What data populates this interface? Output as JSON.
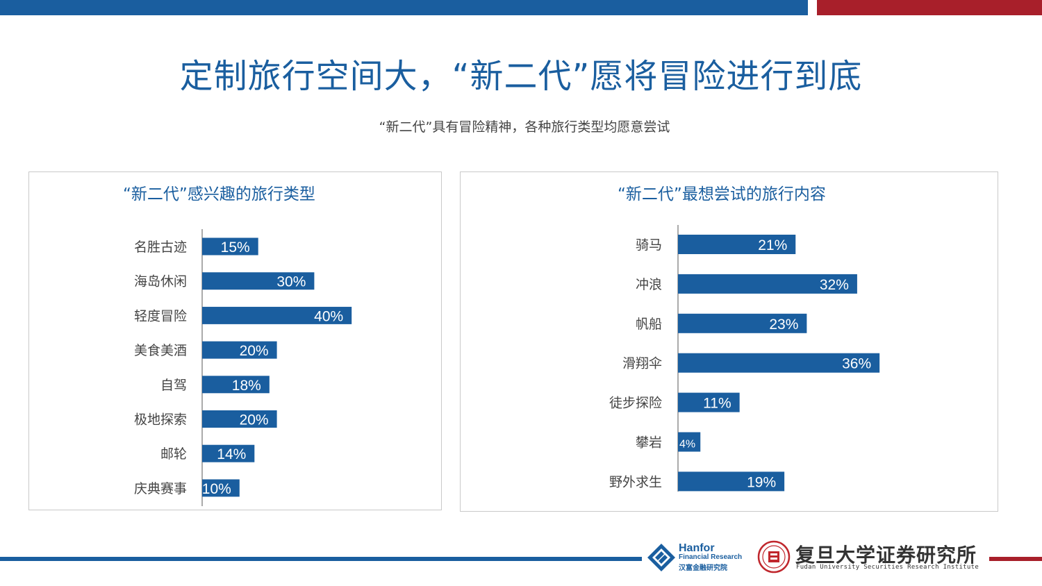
{
  "title": "定制旅行空间大，“新二代”愿将冒险进行到底",
  "subtitle": "“新二代”具有冒险精神，各种旅行类型均愿意尝试",
  "colors": {
    "primary": "#1a5e9f",
    "accent": "#a81f2a"
  },
  "chart_data": [
    {
      "type": "bar",
      "orientation": "horizontal",
      "title": "“新二代”感兴趣的旅行类型",
      "categories": [
        "名胜古迹",
        "海岛休闲",
        "轻度冒险",
        "美食美酒",
        "自驾",
        "极地探索",
        "邮轮",
        "庆典赛事"
      ],
      "values": [
        15,
        30,
        40,
        20,
        18,
        20,
        14,
        10
      ],
      "value_labels": [
        "15%",
        "30%",
        "40%",
        "20%",
        "18%",
        "20%",
        "14%",
        "10%"
      ],
      "unit": "%",
      "xlim": [
        0,
        100
      ],
      "grid": false,
      "legend": "none"
    },
    {
      "type": "bar",
      "orientation": "horizontal",
      "title": "“新二代”最想尝试的旅行内容",
      "categories": [
        "骑马",
        "冲浪",
        "帆船",
        "滑翔伞",
        "徒步探险",
        "攀岩",
        "野外求生"
      ],
      "values": [
        21,
        32,
        23,
        36,
        11,
        4,
        19
      ],
      "value_labels": [
        "21%",
        "32%",
        "23%",
        "36%",
        "11%",
        "4%",
        "19%"
      ],
      "unit": "%",
      "xlim": [
        0,
        100
      ],
      "grid": false,
      "legend": "none"
    }
  ],
  "logos": {
    "hanfor": {
      "name": "Hanfor",
      "sub": "Financial Research",
      "cn": "汉富金融研究院",
      "icon": "hanfor-logo-icon"
    },
    "fudan": {
      "cn": "复旦大学证券研究所",
      "en": "Fudan University Securities Research Institute",
      "icon": "fudan-seal-icon"
    }
  }
}
